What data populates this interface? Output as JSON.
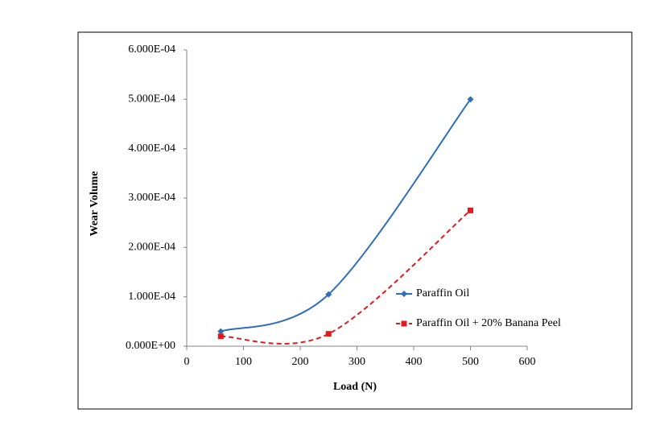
{
  "chart_data": {
    "type": "line",
    "x_label": "Load (N)",
    "y_label": "Wear Volume",
    "series": [
      {
        "name": "Paraffin Oil",
        "color": "#2e6fba",
        "marker": "diamond",
        "dash": false,
        "x": [
          60,
          250,
          500
        ],
        "values": [
          3e-05,
          0.000105,
          0.0005
        ]
      },
      {
        "name": "Paraffin Oil + 20% Banana Peel",
        "color": "#e3191c",
        "marker": "square",
        "dash": true,
        "x": [
          60,
          250,
          500
        ],
        "values": [
          2e-05,
          2.5e-05,
          0.000275
        ]
      }
    ],
    "xlim": [
      0,
      600
    ],
    "xticks": [
      0,
      100,
      200,
      300,
      400,
      500,
      600
    ],
    "ylim": [
      0,
      0.0006
    ],
    "yticks": [
      {
        "value": 0,
        "label": "0.000E+00"
      },
      {
        "value": 0.0001,
        "label": "1.000E-04"
      },
      {
        "value": 0.0002,
        "label": "2.000E-04"
      },
      {
        "value": 0.0003,
        "label": "3.000E-04"
      },
      {
        "value": 0.0004,
        "label": "4.000E-04"
      },
      {
        "value": 0.0005,
        "label": "5.000E-04"
      },
      {
        "value": 0.0006,
        "label": "6.000E-04"
      }
    ],
    "smooth": true
  }
}
